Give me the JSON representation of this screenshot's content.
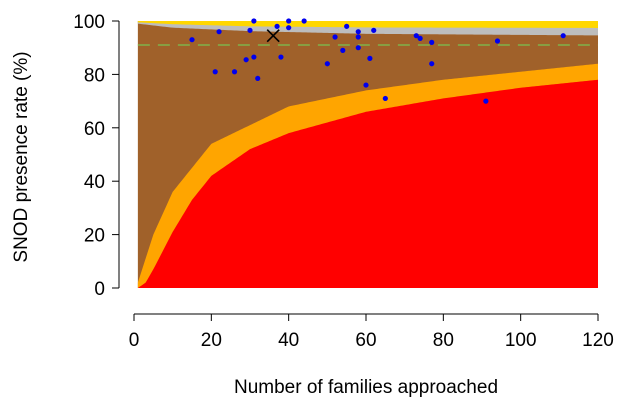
{
  "chart_data": {
    "type": "scatter",
    "xlabel": "Number of families approached",
    "ylabel": "SNOD presence rate (%)",
    "xlim": [
      0,
      120
    ],
    "ylim": [
      0,
      100
    ],
    "x_ticks": [
      0,
      20,
      40,
      60,
      80,
      100,
      120
    ],
    "y_ticks": [
      0,
      20,
      40,
      60,
      80,
      100
    ],
    "reference_line": {
      "y": 91,
      "style": "dashed",
      "color": "#7fb24a"
    },
    "regions": [
      {
        "name": "yellow-band",
        "color": "#ffd700",
        "lower_at_x": [
          [
            1,
            99.5
          ],
          [
            10,
            98.8
          ],
          [
            30,
            98.0
          ],
          [
            60,
            97.6
          ],
          [
            120,
            97.4
          ]
        ],
        "upper": 100
      },
      {
        "name": "grey-band",
        "color": "#bdbdbd",
        "lower_at_x": [
          [
            1,
            99
          ],
          [
            10,
            97.5
          ],
          [
            30,
            96.2
          ],
          [
            60,
            95.2
          ],
          [
            120,
            94.6
          ]
        ],
        "upper_from": "yellow-band"
      },
      {
        "name": "brown-band",
        "color": "#a0612a",
        "upper_from": "grey-band"
      },
      {
        "name": "orange-band",
        "color": "#ffa500",
        "upper_at_x": [
          [
            1,
            2
          ],
          [
            5,
            20
          ],
          [
            10,
            36
          ],
          [
            20,
            54
          ],
          [
            40,
            68
          ],
          [
            60,
            74
          ],
          [
            80,
            78
          ],
          [
            100,
            81
          ],
          [
            120,
            84
          ]
        ]
      },
      {
        "name": "red-band",
        "color": "#ff0000",
        "upper_at_x": [
          [
            1,
            0
          ],
          [
            3,
            2
          ],
          [
            5,
            7
          ],
          [
            10,
            21
          ],
          [
            15,
            33
          ],
          [
            20,
            42
          ],
          [
            30,
            52
          ],
          [
            40,
            58
          ],
          [
            60,
            66
          ],
          [
            80,
            71
          ],
          [
            100,
            75
          ],
          [
            120,
            78
          ]
        ]
      }
    ],
    "highlight_point": {
      "x": 36,
      "y": 94.5,
      "marker": "x"
    },
    "points": [
      {
        "x": 15,
        "y": 93
      },
      {
        "x": 21,
        "y": 81
      },
      {
        "x": 22,
        "y": 96
      },
      {
        "x": 26,
        "y": 81
      },
      {
        "x": 29,
        "y": 85.5
      },
      {
        "x": 30,
        "y": 96.5
      },
      {
        "x": 31,
        "y": 100
      },
      {
        "x": 31,
        "y": 86.5
      },
      {
        "x": 32,
        "y": 78.5
      },
      {
        "x": 37,
        "y": 98
      },
      {
        "x": 38,
        "y": 86.5
      },
      {
        "x": 40,
        "y": 97.5
      },
      {
        "x": 40,
        "y": 100
      },
      {
        "x": 44,
        "y": 100
      },
      {
        "x": 50,
        "y": 84
      },
      {
        "x": 52,
        "y": 94
      },
      {
        "x": 54,
        "y": 89
      },
      {
        "x": 55,
        "y": 98
      },
      {
        "x": 58,
        "y": 96
      },
      {
        "x": 58,
        "y": 94
      },
      {
        "x": 58,
        "y": 90
      },
      {
        "x": 60,
        "y": 76
      },
      {
        "x": 61,
        "y": 86
      },
      {
        "x": 62,
        "y": 96.5
      },
      {
        "x": 65,
        "y": 71
      },
      {
        "x": 73,
        "y": 94.5
      },
      {
        "x": 74,
        "y": 93.5
      },
      {
        "x": 77,
        "y": 84
      },
      {
        "x": 77,
        "y": 92
      },
      {
        "x": 91,
        "y": 70
      },
      {
        "x": 94,
        "y": 92.5
      },
      {
        "x": 111,
        "y": 94.5
      }
    ],
    "colors": {
      "points": "#0000ee",
      "axis": "#000000"
    }
  }
}
